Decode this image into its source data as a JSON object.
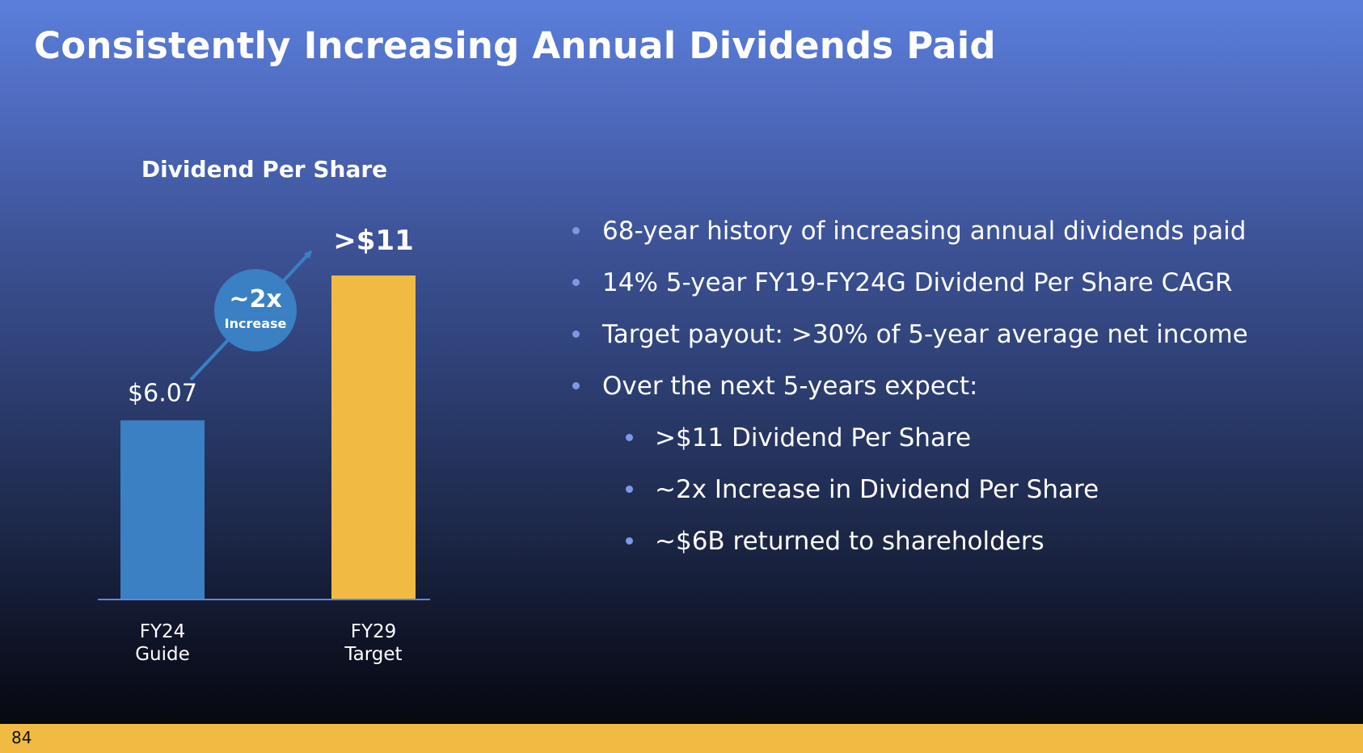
{
  "slide": {
    "title": "Consistently Increasing Annual Dividends Paid",
    "page_number": "84"
  },
  "chart_data": {
    "type": "bar",
    "title": "Dividend Per Share",
    "categories": [
      {
        "line1": "FY24",
        "line2": "Guide"
      },
      {
        "line1": "FY29",
        "line2": "Target"
      }
    ],
    "values": [
      6.07,
      11
    ],
    "value_labels": [
      "$6.07",
      ">$11"
    ],
    "bar_colors": [
      "#3a80c3",
      "#f1bb43"
    ],
    "ylim": [
      0,
      11
    ],
    "grid": false,
    "annotation": {
      "main": "~2x",
      "sub": "Increase",
      "color": "#3a80c3"
    }
  },
  "bullets": [
    {
      "text": "68-year history of increasing annual dividends paid",
      "level": 1
    },
    {
      "text": "14% 5-year FY19-FY24G Dividend Per Share CAGR",
      "level": 1
    },
    {
      "text": "Target payout: >30% of 5-year average net income",
      "level": 1
    },
    {
      "text": "Over the next 5-years expect:",
      "level": 1
    },
    {
      "text": ">$11 Dividend Per Share",
      "level": 2
    },
    {
      "text": "~2x Increase in Dividend Per Share",
      "level": 2
    },
    {
      "text": "~$6B returned to shareholders",
      "level": 2
    }
  ],
  "colors": {
    "accent_blue": "#3a80c3",
    "accent_gold": "#f1bb43",
    "bullet_dot": "#7d99e6",
    "footer": "#f1bb43"
  }
}
